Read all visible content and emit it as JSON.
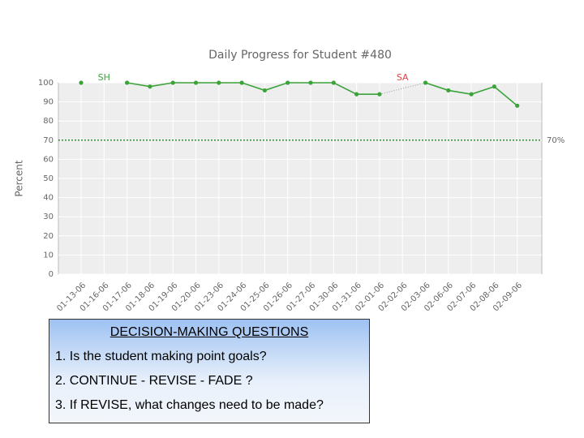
{
  "chart_data": {
    "type": "line",
    "title": "Daily Progress for Student #480",
    "y_label": "Percent",
    "categories": [
      "01-13-06",
      "01-16-06",
      "01-17-06",
      "01-18-06",
      "01-19-06",
      "01-20-06",
      "01-23-06",
      "01-24-06",
      "01-25-06",
      "01-26-06",
      "01-27-06",
      "01-30-06",
      "01-31-06",
      "02-01-06",
      "02-02-06",
      "02-03-06",
      "02-06-06",
      "02-07-06",
      "02-08-06",
      "02-09-06"
    ],
    "values": [
      100,
      null,
      100,
      98,
      100,
      100,
      100,
      100,
      96,
      100,
      100,
      100,
      94,
      94,
      null,
      100,
      96,
      94,
      98,
      88
    ],
    "color": "#3aa33a",
    "ylim": [
      0,
      100
    ],
    "yticks": [
      0,
      10,
      20,
      30,
      40,
      50,
      60,
      70,
      80,
      90,
      100
    ],
    "grid": true,
    "reference_line": {
      "value": 70,
      "label": "70%"
    },
    "annotations": [
      {
        "text": "SH",
        "x": "01-16-06"
      },
      {
        "text": "SA",
        "x": "02-02-06"
      }
    ]
  },
  "questions": {
    "title": "DECISION-MAKING QUESTIONS",
    "items": [
      "1. Is the student making point goals?",
      "2. CONTINUE - REVISE  - FADE ?",
      "3. If REVISE, what changes need to be made?"
    ]
  }
}
